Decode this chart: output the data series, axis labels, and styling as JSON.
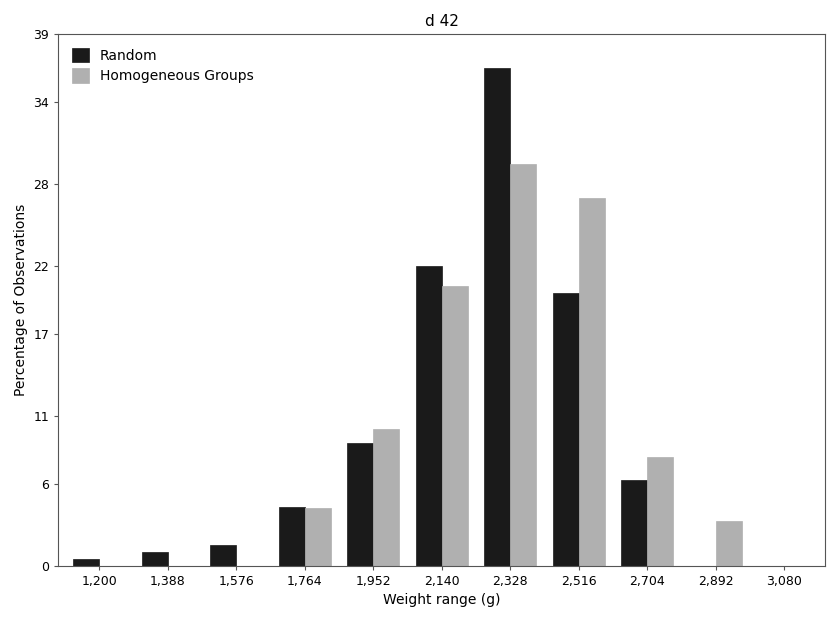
{
  "title": "d 42",
  "xlabel": "Weight range (g)",
  "ylabel": "Percentage of Observations",
  "categories": [
    "1,200",
    "1,388",
    "1,576",
    "1,764",
    "1,952",
    "2,140",
    "2,328",
    "2,516",
    "2,704",
    "2,892",
    "3,080"
  ],
  "random_values": [
    0.5,
    1.0,
    1.5,
    4.3,
    9.0,
    22.0,
    36.5,
    20.0,
    6.3,
    0.0,
    0.0
  ],
  "homogeneous_values": [
    0.0,
    0.0,
    0.0,
    4.2,
    10.0,
    20.5,
    29.5,
    27.0,
    8.0,
    3.3,
    0.0
  ],
  "random_color": "#1a1a1a",
  "homogeneous_color": "#b0b0b0",
  "legend_labels": [
    "Random",
    "Homogeneous Groups"
  ],
  "yticks": [
    0,
    6,
    11,
    17,
    22,
    28,
    34,
    39
  ],
  "ylim": [
    0,
    39
  ],
  "bar_width": 0.38,
  "background_color": "#ffffff",
  "title_fontsize": 11,
  "axis_fontsize": 10,
  "tick_fontsize": 9,
  "legend_fontsize": 10,
  "figwidth": 8.39,
  "figheight": 6.21,
  "dpi": 100
}
